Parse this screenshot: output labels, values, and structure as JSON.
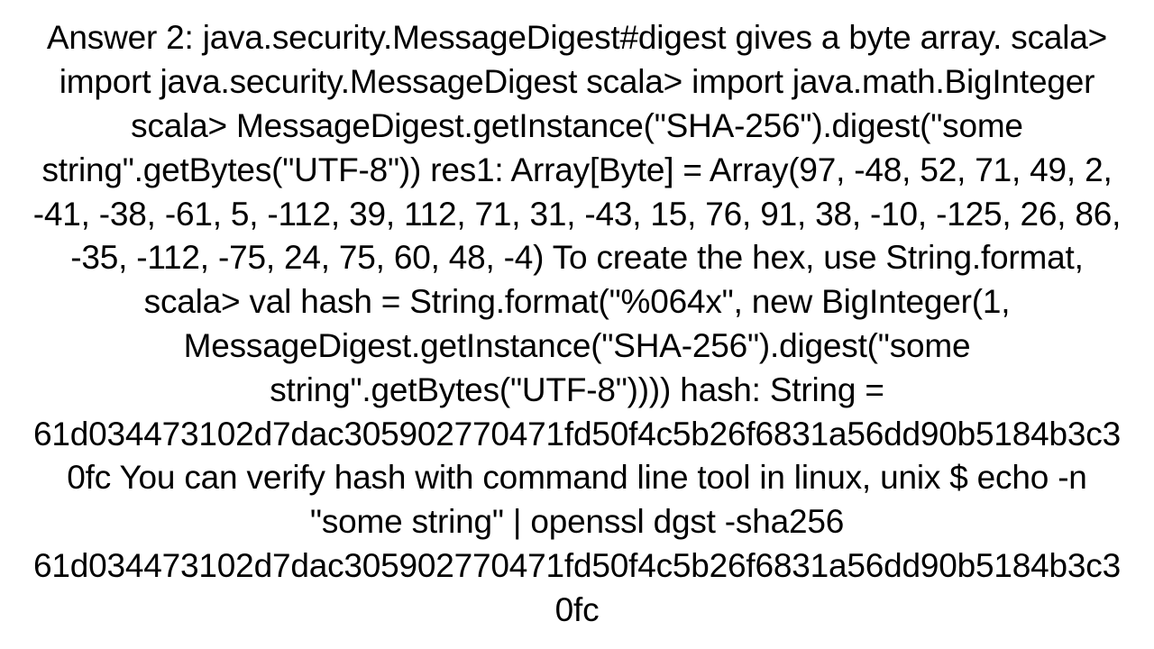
{
  "text": {
    "content": "Answer 2: java.security.MessageDigest#digest gives a byte array. scala> import java.security.MessageDigest scala> import java.math.BigInteger  scala> MessageDigest.getInstance(\"SHA-256\").digest(\"some string\".getBytes(\"UTF-8\")) res1: Array[Byte] = Array(97, -48, 52, 71, 49, 2, -41, -38, -61, 5, -112, 39, 112, 71, 31, -43, 15, 76, 91, 38, -10, -125, 26, 86, -35, -112, -75, 24, 75, 60, 48, -4)  To create the hex, use String.format, scala> val hash = String.format(\"%064x\", new BigInteger(1, MessageDigest.getInstance(\"SHA-256\").digest(\"some string\".getBytes(\"UTF-8\")))) hash: String = 61d034473102d7dac305902770471fd50f4c5b26f6831a56dd90b5184b3c30fc  You can verify hash with command line tool in linux, unix $ echo -n \"some string\" | openssl dgst -sha256 61d034473102d7dac305902770471fd50f4c5b26f6831a56dd90b5184b3c30fc",
    "font_size": 37,
    "color": "#000000",
    "background_color": "#ffffff",
    "text_align": "center",
    "line_height": 1.32,
    "font_family": "Arial"
  }
}
